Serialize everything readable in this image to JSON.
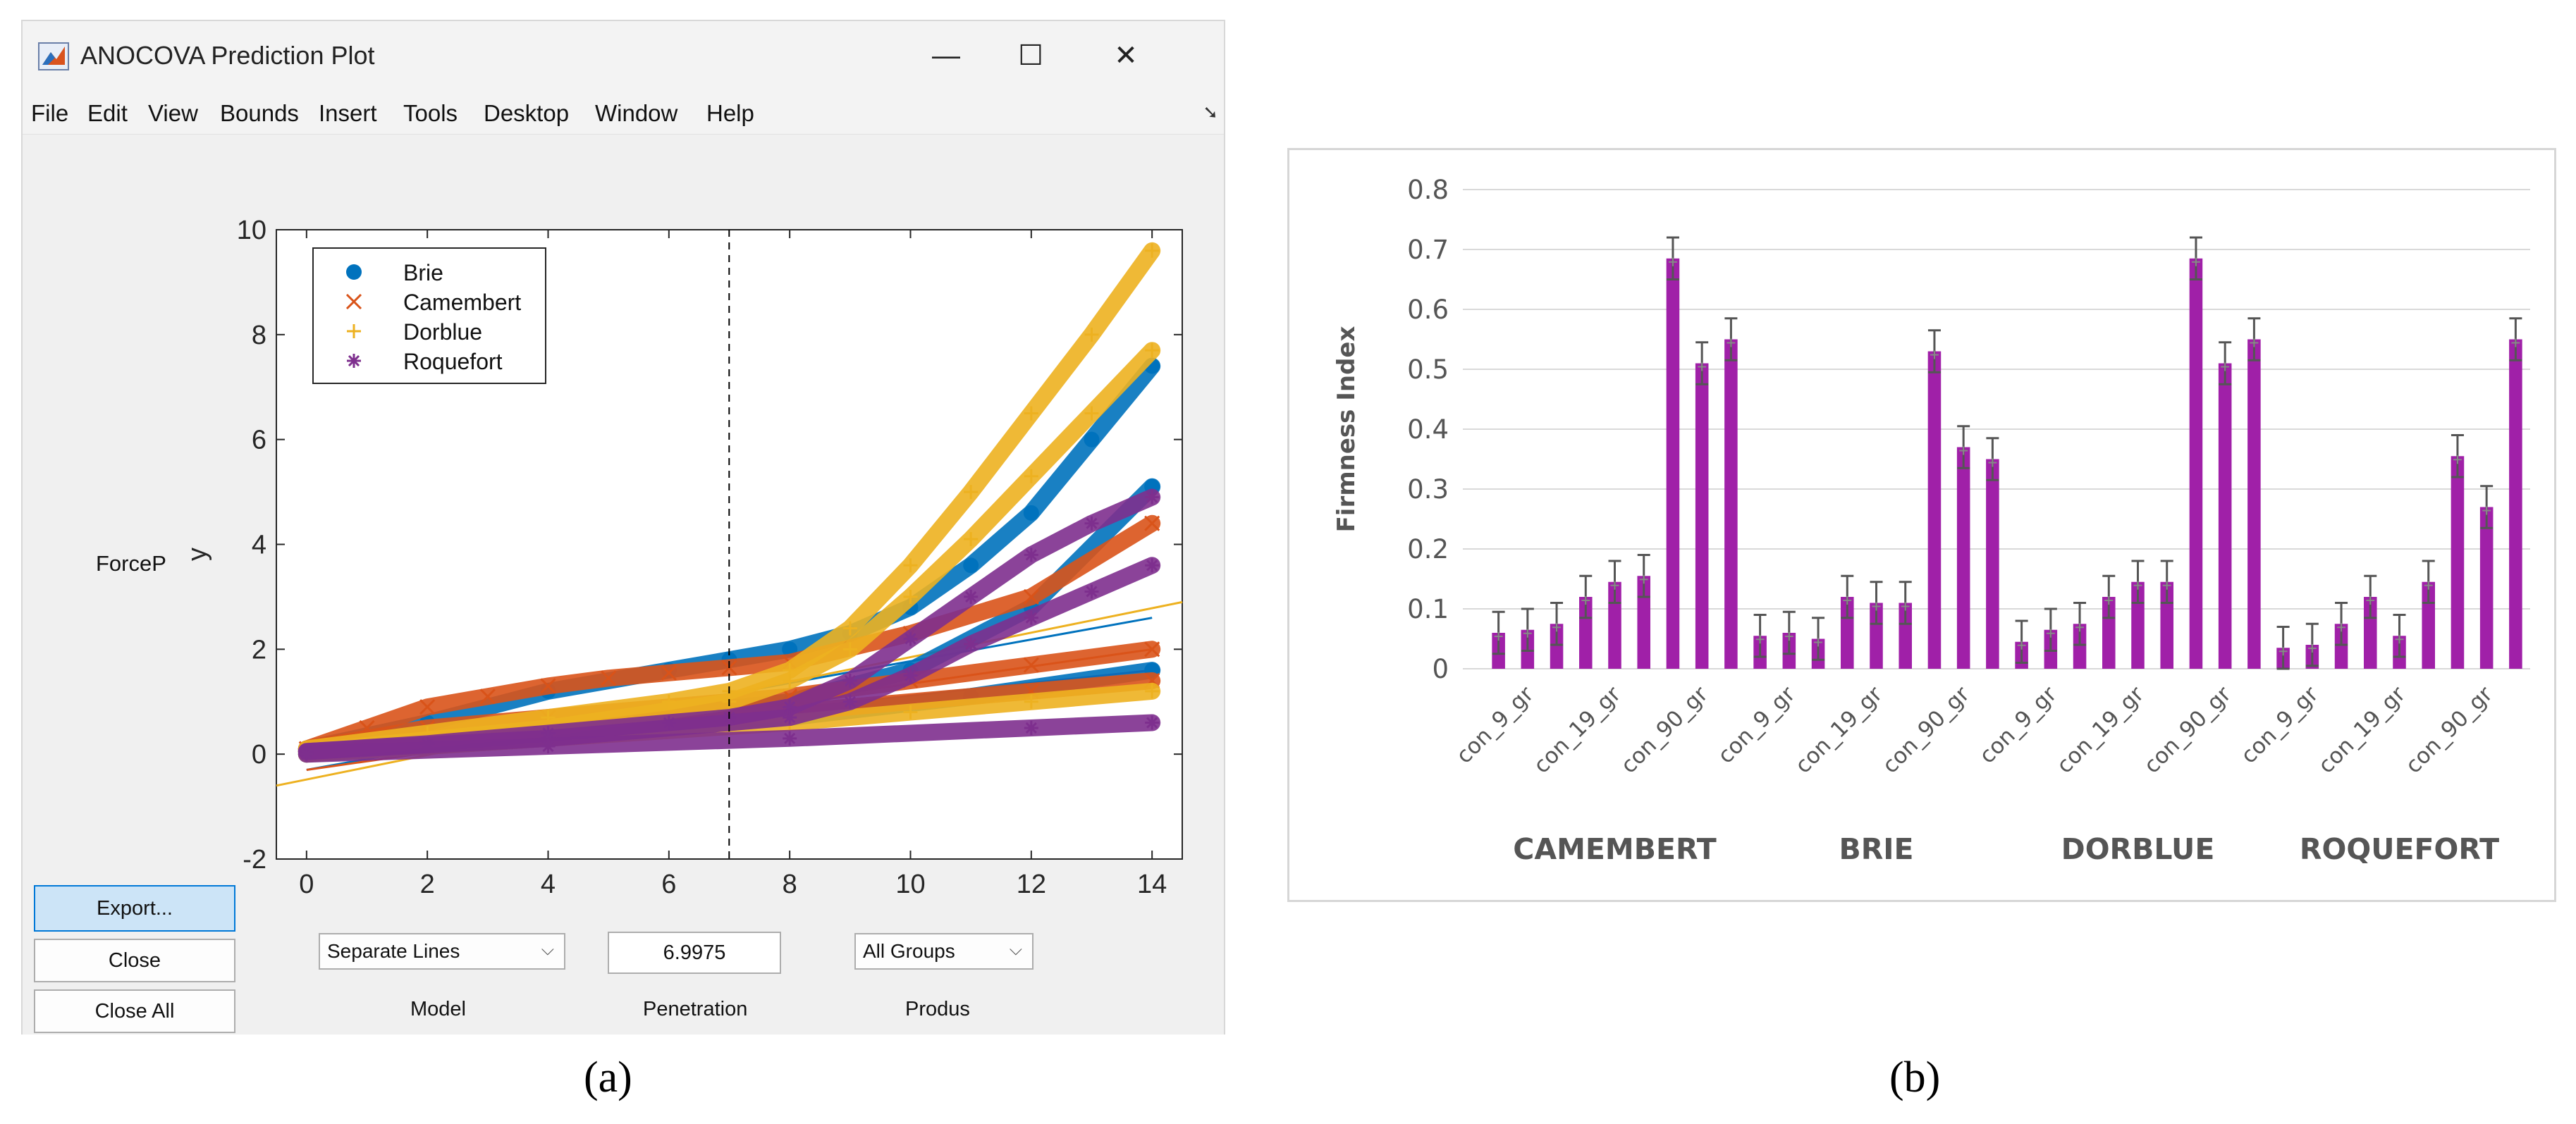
{
  "window": {
    "title": "ANOCOVA Prediction Plot",
    "controls": {
      "minimize": "—",
      "maximize": "☐",
      "close": "✕"
    },
    "menu": [
      "File",
      "Edit",
      "View",
      "Bounds",
      "Insert",
      "Tools",
      "Desktop",
      "Window",
      "Help"
    ],
    "dock_icon": "undock-arrow-icon"
  },
  "panel_a": {
    "side_label": "ForceP",
    "buttons": {
      "export": "Export...",
      "close": "Close",
      "close_all": "Close All"
    },
    "model": {
      "value": "Separate Lines",
      "label": "Model"
    },
    "penetration": {
      "value": "6.9975",
      "label": "Penetration"
    },
    "produs": {
      "value": "All Groups",
      "label": "Produs"
    },
    "caption": "(a)"
  },
  "panel_b": {
    "caption": "(b)"
  },
  "colors": {
    "Brie": "#0072bd",
    "Camembert": "#d95319",
    "Dorblue": "#edb120",
    "Roquefort": "#7e2f8e",
    "bar": "#a020a8",
    "window_bg": "#f0f0f0"
  },
  "chart_data": [
    {
      "type": "scatter",
      "title": "",
      "xlabel": "",
      "ylabel": "y",
      "xlim": [
        -0.5,
        14.5
      ],
      "ylim": [
        -2,
        10
      ],
      "xticks": [
        0,
        2,
        4,
        6,
        8,
        10,
        12,
        14
      ],
      "yticks": [
        -2,
        0,
        2,
        4,
        6,
        8,
        10
      ],
      "reference_line_x": 6.9975,
      "legend_position": "top-left",
      "legend": [
        {
          "name": "Brie",
          "marker": "●"
        },
        {
          "name": "Camembert",
          "marker": "×"
        },
        {
          "name": "Dorblue",
          "marker": "+"
        },
        {
          "name": "Roquefort",
          "marker": "✱"
        }
      ],
      "series": [
        {
          "name": "Brie",
          "marker": "dot",
          "x": [
            0,
            2,
            4,
            6,
            7,
            8,
            9,
            10,
            11,
            12,
            13,
            14
          ],
          "y": [
            0.1,
            0.6,
            1.2,
            1.6,
            1.8,
            2.0,
            2.3,
            2.8,
            3.6,
            4.6,
            6.0,
            7.4
          ]
        },
        {
          "name": "Brie",
          "marker": "dot",
          "x": [
            0,
            4,
            8,
            10,
            12,
            14
          ],
          "y": [
            0.05,
            0.5,
            1.0,
            1.6,
            2.8,
            5.1
          ]
        },
        {
          "name": "Brie",
          "marker": "dot",
          "x": [
            0,
            4,
            8,
            11,
            14
          ],
          "y": [
            0.0,
            0.3,
            0.7,
            1.1,
            1.6
          ]
        },
        {
          "name": "Camembert",
          "marker": "x",
          "x": [
            0,
            1,
            2,
            3,
            4,
            5,
            6,
            7,
            8,
            10,
            12,
            14
          ],
          "y": [
            0.1,
            0.5,
            0.9,
            1.1,
            1.3,
            1.45,
            1.55,
            1.65,
            1.75,
            2.3,
            3.0,
            4.4
          ]
        },
        {
          "name": "Camembert",
          "marker": "x",
          "x": [
            0,
            2,
            4,
            6,
            8,
            10,
            12,
            14
          ],
          "y": [
            0.1,
            0.5,
            0.7,
            0.9,
            1.1,
            1.4,
            1.7,
            2.0
          ]
        },
        {
          "name": "Camembert",
          "marker": "x",
          "x": [
            0,
            4,
            8,
            12,
            14
          ],
          "y": [
            0.05,
            0.4,
            0.8,
            1.2,
            1.4
          ]
        },
        {
          "name": "Dorblue",
          "marker": "+",
          "x": [
            0,
            2,
            4,
            6,
            7,
            8,
            9,
            10,
            11,
            12,
            13,
            14
          ],
          "y": [
            0.1,
            0.4,
            0.7,
            1.0,
            1.2,
            1.6,
            2.4,
            3.6,
            5.0,
            6.5,
            8.0,
            9.6
          ]
        },
        {
          "name": "Dorblue",
          "marker": "+",
          "x": [
            0,
            4,
            7,
            8,
            9,
            10,
            11,
            12,
            13,
            14
          ],
          "y": [
            0.05,
            0.5,
            1.0,
            1.4,
            2.0,
            3.0,
            4.1,
            5.3,
            6.5,
            7.7
          ]
        },
        {
          "name": "Dorblue",
          "marker": "+",
          "x": [
            0,
            4,
            8,
            10,
            12,
            14
          ],
          "y": [
            0.0,
            0.3,
            0.6,
            0.8,
            1.0,
            1.2
          ]
        },
        {
          "name": "Roquefort",
          "marker": "*",
          "x": [
            0,
            2,
            4,
            6,
            7,
            8,
            9,
            10,
            11,
            12,
            13,
            14
          ],
          "y": [
            0.05,
            0.2,
            0.4,
            0.6,
            0.7,
            0.9,
            1.4,
            2.2,
            3.0,
            3.8,
            4.4,
            4.9
          ]
        },
        {
          "name": "Roquefort",
          "marker": "*",
          "x": [
            0,
            4,
            8,
            9,
            10,
            11,
            12,
            13,
            14
          ],
          "y": [
            0.05,
            0.3,
            0.7,
            1.0,
            1.5,
            2.1,
            2.6,
            3.1,
            3.6
          ]
        },
        {
          "name": "Roquefort",
          "marker": "*",
          "x": [
            0,
            4,
            8,
            12,
            14
          ],
          "y": [
            0.0,
            0.15,
            0.3,
            0.5,
            0.6
          ]
        }
      ],
      "fit_lines": [
        {
          "name": "Brie",
          "x": [
            0,
            14
          ],
          "y": [
            -0.3,
            2.6
          ]
        },
        {
          "name": "Camembert",
          "x": [
            0,
            14
          ],
          "y": [
            -0.3,
            2.0
          ]
        },
        {
          "name": "Dorblue",
          "x": [
            -0.5,
            14.5
          ],
          "y": [
            -0.6,
            2.9
          ]
        },
        {
          "name": "Roquefort",
          "x": [
            0,
            14
          ],
          "y": [
            -0.1,
            1.6
          ]
        }
      ]
    },
    {
      "type": "bar",
      "title": "",
      "xlabel": "",
      "ylabel": "Firmness Index",
      "ylim": [
        0,
        0.8
      ],
      "yticks": [
        0,
        0.1,
        0.2,
        0.3,
        0.4,
        0.5,
        0.6,
        0.7,
        0.8
      ],
      "grid": true,
      "groups": [
        {
          "name": "CAMEMBERT",
          "values": [
            0.06,
            0.065,
            0.075,
            0.12,
            0.145,
            0.155,
            0.685,
            0.51,
            0.55
          ],
          "errors": [
            0.035,
            0.035,
            0.035,
            0.035,
            0.035,
            0.035,
            0.035,
            0.035,
            0.035
          ],
          "tick_labels": [
            "con_9_gr",
            "con_19_gr",
            "con_90_gr"
          ]
        },
        {
          "name": "BRIE",
          "values": [
            0.055,
            0.06,
            0.05,
            0.12,
            0.11,
            0.11,
            0.53,
            0.37,
            0.35
          ],
          "errors": [
            0.035,
            0.035,
            0.035,
            0.035,
            0.035,
            0.035,
            0.035,
            0.035,
            0.035
          ],
          "tick_labels": [
            "con_9_gr",
            "con_19_gr",
            "con_90_gr"
          ]
        },
        {
          "name": "DORBLUE",
          "values": [
            0.045,
            0.065,
            0.075,
            0.12,
            0.145,
            0.145,
            0.685,
            0.51,
            0.55
          ],
          "errors": [
            0.035,
            0.035,
            0.035,
            0.035,
            0.035,
            0.035,
            0.035,
            0.035,
            0.035
          ],
          "tick_labels": [
            "con_9_gr",
            "con_19_gr",
            "con_90_gr"
          ]
        },
        {
          "name": "ROQUEFORT",
          "values": [
            0.035,
            0.04,
            0.075,
            0.12,
            0.055,
            0.145,
            0.355,
            0.27,
            0.55
          ],
          "errors": [
            0.035,
            0.035,
            0.035,
            0.035,
            0.035,
            0.035,
            0.035,
            0.035,
            0.035
          ],
          "tick_labels": [
            "con_9_gr",
            "con_19_gr",
            "con_90_gr"
          ]
        }
      ]
    }
  ]
}
